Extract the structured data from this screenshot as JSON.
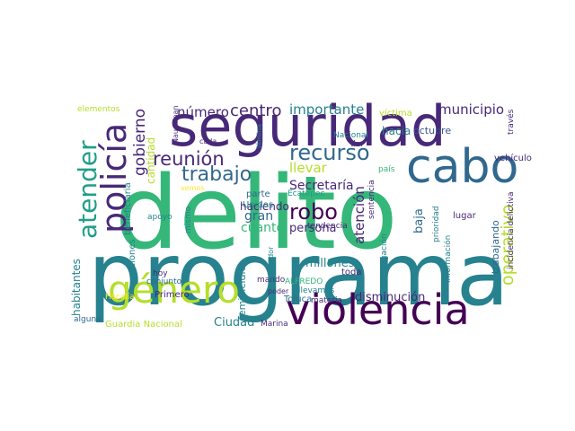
{
  "palette": {
    "dark": "#440154",
    "indigo": "#482878",
    "blue": "#3b528b",
    "steel": "#31688e",
    "teal": "#26828e",
    "sea": "#1f9e89",
    "green": "#35b779",
    "lime": "#6ece58",
    "yellow": "#b5de2b",
    "gold": "#fde725"
  },
  "words": [
    {
      "key": "delito",
      "text": "delito",
      "color": "green"
    },
    {
      "key": "programa",
      "text": "programa",
      "color": "teal"
    },
    {
      "key": "seguridad",
      "text": "seguridad",
      "color": "indigo"
    },
    {
      "key": "violencia",
      "text": "violencia",
      "color": "dark"
    },
    {
      "key": "cabo",
      "text": "cabo",
      "color": "steel"
    },
    {
      "key": "genero",
      "text": "género",
      "color": "yellow"
    },
    {
      "key": "policia",
      "text": "policía",
      "color": "indigo"
    },
    {
      "key": "atender",
      "text": "atender",
      "color": "sea"
    },
    {
      "key": "recurso",
      "text": "recurso",
      "color": "steel"
    },
    {
      "key": "robo",
      "text": "robo",
      "color": "dark"
    },
    {
      "key": "trabajo",
      "text": "trabajo",
      "color": "steel"
    },
    {
      "key": "reunion",
      "text": "reunión",
      "color": "indigo"
    },
    {
      "key": "centro",
      "text": "centro",
      "color": "indigo"
    },
    {
      "key": "numero",
      "text": "número",
      "color": "indigo"
    },
    {
      "key": "importante",
      "text": "importante",
      "color": "teal"
    },
    {
      "key": "municipio",
      "text": "municipio",
      "color": "indigo"
    },
    {
      "key": "gobierno",
      "text": "gobierno",
      "color": "indigo"
    },
    {
      "key": "cantidad",
      "text": "cantidad",
      "color": "yellow"
    },
    {
      "key": "llevar",
      "text": "llevar",
      "color": "yellow"
    },
    {
      "key": "secretaria",
      "text": "Secretaría",
      "color": "indigo"
    },
    {
      "key": "atencion",
      "text": "atención",
      "color": "indigo"
    },
    {
      "key": "hacia",
      "text": "hacia",
      "color": "teal"
    },
    {
      "key": "octubre",
      "text": "octubre",
      "color": "blue"
    },
    {
      "key": "operativo",
      "text": "operativo",
      "color": "yellow"
    },
    {
      "key": "baja",
      "text": "baja",
      "color": "steel"
    },
    {
      "key": "persona",
      "text": "persona",
      "color": "indigo"
    },
    {
      "key": "haciendo",
      "text": "haciendo",
      "color": "indigo"
    },
    {
      "key": "gran",
      "text": "gran",
      "color": "steel"
    },
    {
      "key": "cuanto",
      "text": "cuanto",
      "color": "green"
    },
    {
      "key": "unidos",
      "text": "Unidos",
      "color": "teal"
    },
    {
      "key": "parte",
      "text": "parte",
      "color": "steel"
    },
    {
      "key": "millones",
      "text": "millones",
      "color": "teal"
    },
    {
      "key": "disminucion",
      "text": "disminución",
      "color": "indigo"
    },
    {
      "key": "toda",
      "text": "toda",
      "color": "indigo"
    },
    {
      "key": "ciudad",
      "text": "Ciudad",
      "color": "teal"
    },
    {
      "key": "guardia",
      "text": "Guardia Nacional",
      "color": "yellow"
    },
    {
      "key": "marina",
      "text": "Marina",
      "color": "indigo"
    },
    {
      "key": "toluca",
      "text": "Toluca",
      "color": "steel"
    },
    {
      "key": "materia",
      "text": "materia",
      "color": "indigo"
    },
    {
      "key": "alfredo",
      "text": "ALFREDO",
      "color": "green"
    },
    {
      "key": "llevamos",
      "text": "llevamos",
      "color": "teal"
    },
    {
      "key": "mando",
      "text": "mando",
      "color": "indigo"
    },
    {
      "key": "feminicidio",
      "text": "feminicidio",
      "color": "teal"
    },
    {
      "key": "primero",
      "text": "Primero",
      "color": "indigo"
    },
    {
      "key": "conjunto",
      "text": "conjunto",
      "color": "steel"
    },
    {
      "key": "hoy",
      "text": "hoy",
      "color": "indigo"
    },
    {
      "key": "fiscalia",
      "text": "Fiscalía",
      "color": "gold"
    },
    {
      "key": "alguna",
      "text": "alguna",
      "color": "steel"
    },
    {
      "key": "habitantes",
      "text": "habitantes",
      "color": "teal"
    },
    {
      "key": "acciones",
      "text": "acciones",
      "color": "teal"
    },
    {
      "key": "beneficiaria",
      "text": "beneficiaria",
      "color": "teal"
    },
    {
      "key": "apoyo",
      "text": "apoyo",
      "color": "teal"
    },
    {
      "key": "mismo",
      "text": "mismo",
      "color": "teal"
    },
    {
      "key": "vemos",
      "text": "vemos",
      "color": "gold"
    },
    {
      "key": "cada",
      "text": "cada",
      "color": "indigo"
    },
    {
      "key": "naucalpan",
      "text": "Naucalpan",
      "color": "indigo"
    },
    {
      "key": "elementos",
      "text": "elementos",
      "color": "yellow"
    },
    {
      "key": "lamina",
      "text": "lámina",
      "color": "teal"
    },
    {
      "key": "victima",
      "text": "víctima",
      "color": "yellow"
    },
    {
      "key": "nacional",
      "text": "Nacional",
      "color": "teal"
    },
    {
      "key": "dar",
      "text": "dar",
      "color": "indigo"
    },
    {
      "key": "pais",
      "text": "país",
      "color": "green"
    },
    {
      "key": "ecatepec",
      "text": "Ecatepec",
      "color": "sea"
    },
    {
      "key": "tendencia",
      "text": "tendencia",
      "color": "indigo"
    },
    {
      "key": "sentencia",
      "text": "sentencia",
      "color": "indigo"
    },
    {
      "key": "poder",
      "text": "poder",
      "color": "indigo"
    },
    {
      "key": "gobernador",
      "text": "gobernador",
      "color": "teal"
    },
    {
      "key": "investigacion",
      "text": "investigación",
      "color": "teal"
    },
    {
      "key": "trabajando",
      "text": "trabajando",
      "color": "steel"
    },
    {
      "key": "lugar",
      "text": "lugar",
      "color": "indigo"
    },
    {
      "key": "informacion",
      "text": "información",
      "color": "teal"
    },
    {
      "key": "prioridad",
      "text": "prioridad",
      "color": "teal"
    },
    {
      "key": "vehiculo",
      "text": "vehículo",
      "color": "indigo"
    },
    {
      "key": "incidencia",
      "text": "incidencia delictiva",
      "color": "indigo"
    },
    {
      "key": "traves",
      "text": "través",
      "color": "indigo"
    }
  ]
}
